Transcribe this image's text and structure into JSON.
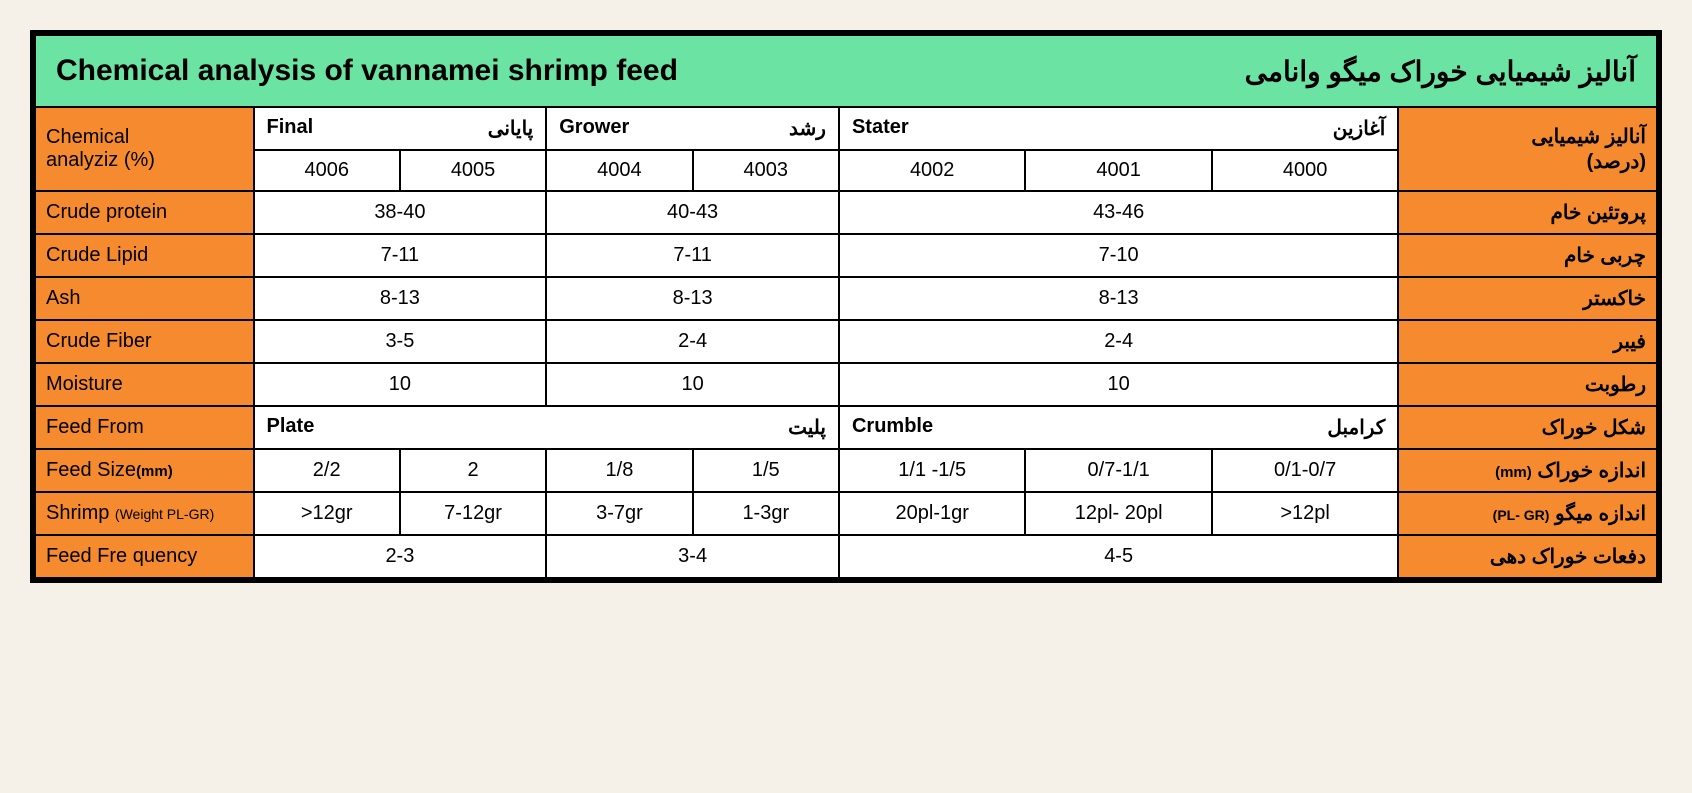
{
  "colors": {
    "title_bg": "#6be3a2",
    "orange": "#f68a2e",
    "white": "#ffffff",
    "border": "#000000",
    "page_bg": "#f5f1e8"
  },
  "title": {
    "en": "Chemical analysis of vannamei shrimp feed",
    "fa": "آنالیز شیمیایی خوراک میگو وانامی"
  },
  "header": {
    "left_label_line1": "Chemical",
    "left_label_line2": "analyziz (%)",
    "right_label_line1": "آنالیز شیمیایی",
    "right_label_line2": "(درصد)",
    "stages": [
      {
        "en": "Final",
        "fa": "پایانی",
        "codes": [
          "4006",
          "4005"
        ]
      },
      {
        "en": "Grower",
        "fa": "رشد",
        "codes": [
          "4004",
          "4003"
        ]
      },
      {
        "en": "Stater",
        "fa": "آغازین",
        "codes": [
          "4002",
          "4001",
          "4000"
        ]
      }
    ]
  },
  "rows": [
    {
      "en": "Crude protein",
      "fa": "پروتئین خام",
      "vals": [
        "38-40",
        "40-43",
        "43-46"
      ]
    },
    {
      "en": "Crude Lipid",
      "fa": "چربی خام",
      "vals": [
        "7-11",
        "7-11",
        "7-10"
      ]
    },
    {
      "en": "Ash",
      "fa": "خاکستر",
      "vals": [
        "8-13",
        "8-13",
        "8-13"
      ]
    },
    {
      "en": "Crude Fiber",
      "fa": "فیبر",
      "vals": [
        "3-5",
        "2-4",
        "2-4"
      ]
    },
    {
      "en": "Moisture",
      "fa": "رطوبت",
      "vals": [
        "10",
        "10",
        "10"
      ]
    }
  ],
  "feed_form": {
    "en": "Feed From",
    "fa": "شکل خوراک",
    "plate_en": "Plate",
    "plate_fa": "پلیت",
    "crumble_en": "Crumble",
    "crumble_fa": "کرامبل"
  },
  "feed_size": {
    "en": "Feed Size",
    "unit_en": "(mm)",
    "fa": "اندازه خوراک",
    "unit_fa": "(mm)",
    "vals": [
      "2/2",
      "2",
      "1/8",
      "1/5",
      "1/1 -1/5",
      "0/7-1/1",
      "0/1-0/7"
    ]
  },
  "shrimp": {
    "en": "Shrimp",
    "paren_en": "(Weight PL-GR)",
    "fa": "اندازه میگو",
    "paren_fa": "(PL- GR)",
    "vals": [
      ">12gr",
      "7-12gr",
      "3-7gr",
      "1-3gr",
      "20pl-1gr",
      "12pl- 20pl",
      ">12pl"
    ]
  },
  "freq": {
    "en": "Feed Fre quency",
    "fa": "دفعات خوراک دهی",
    "vals": [
      "2-3",
      "3-4",
      "4-5"
    ]
  }
}
